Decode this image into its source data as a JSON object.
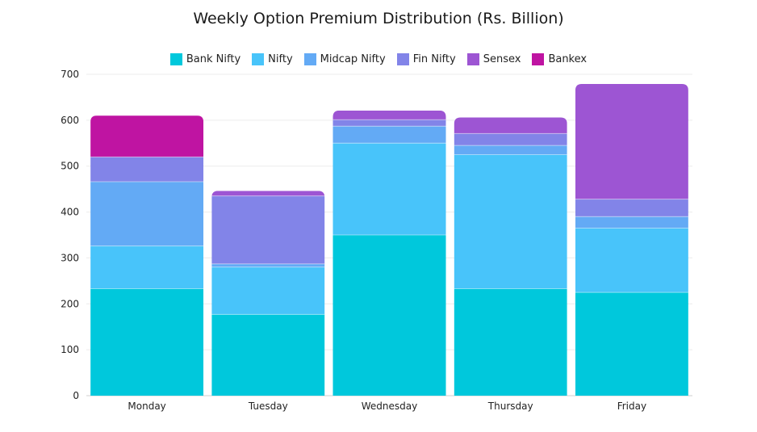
{
  "chart_data": {
    "type": "bar",
    "stacked": true,
    "title": "Weekly Option Premium Distribution (Rs. Billion)",
    "categories": [
      "Monday",
      "Tuesday",
      "Wednesday",
      "Thursday",
      "Friday"
    ],
    "ylim": [
      0,
      700
    ],
    "yticks": [
      0,
      100,
      200,
      300,
      400,
      500,
      600,
      700
    ],
    "grid": true,
    "legend_position": "top",
    "series": [
      {
        "name": "Bank Nifty",
        "color": "#00c8dc",
        "values": [
          233,
          177,
          350,
          233,
          225
        ]
      },
      {
        "name": "Nifty",
        "color": "#48c4fa",
        "values": [
          93,
          103,
          200,
          292,
          140
        ]
      },
      {
        "name": "Midcap Nifty",
        "color": "#63aaf5",
        "values": [
          140,
          7,
          37,
          20,
          25
        ]
      },
      {
        "name": "Fin Nifty",
        "color": "#8284e8",
        "values": [
          54,
          148,
          14,
          26,
          38
        ]
      },
      {
        "name": "Sensex",
        "color": "#9d55d3",
        "values": [
          0,
          11,
          20,
          35,
          251
        ]
      },
      {
        "name": "Bankex",
        "color": "#bf14a2",
        "values": [
          90,
          0,
          0,
          0,
          0
        ]
      }
    ]
  }
}
